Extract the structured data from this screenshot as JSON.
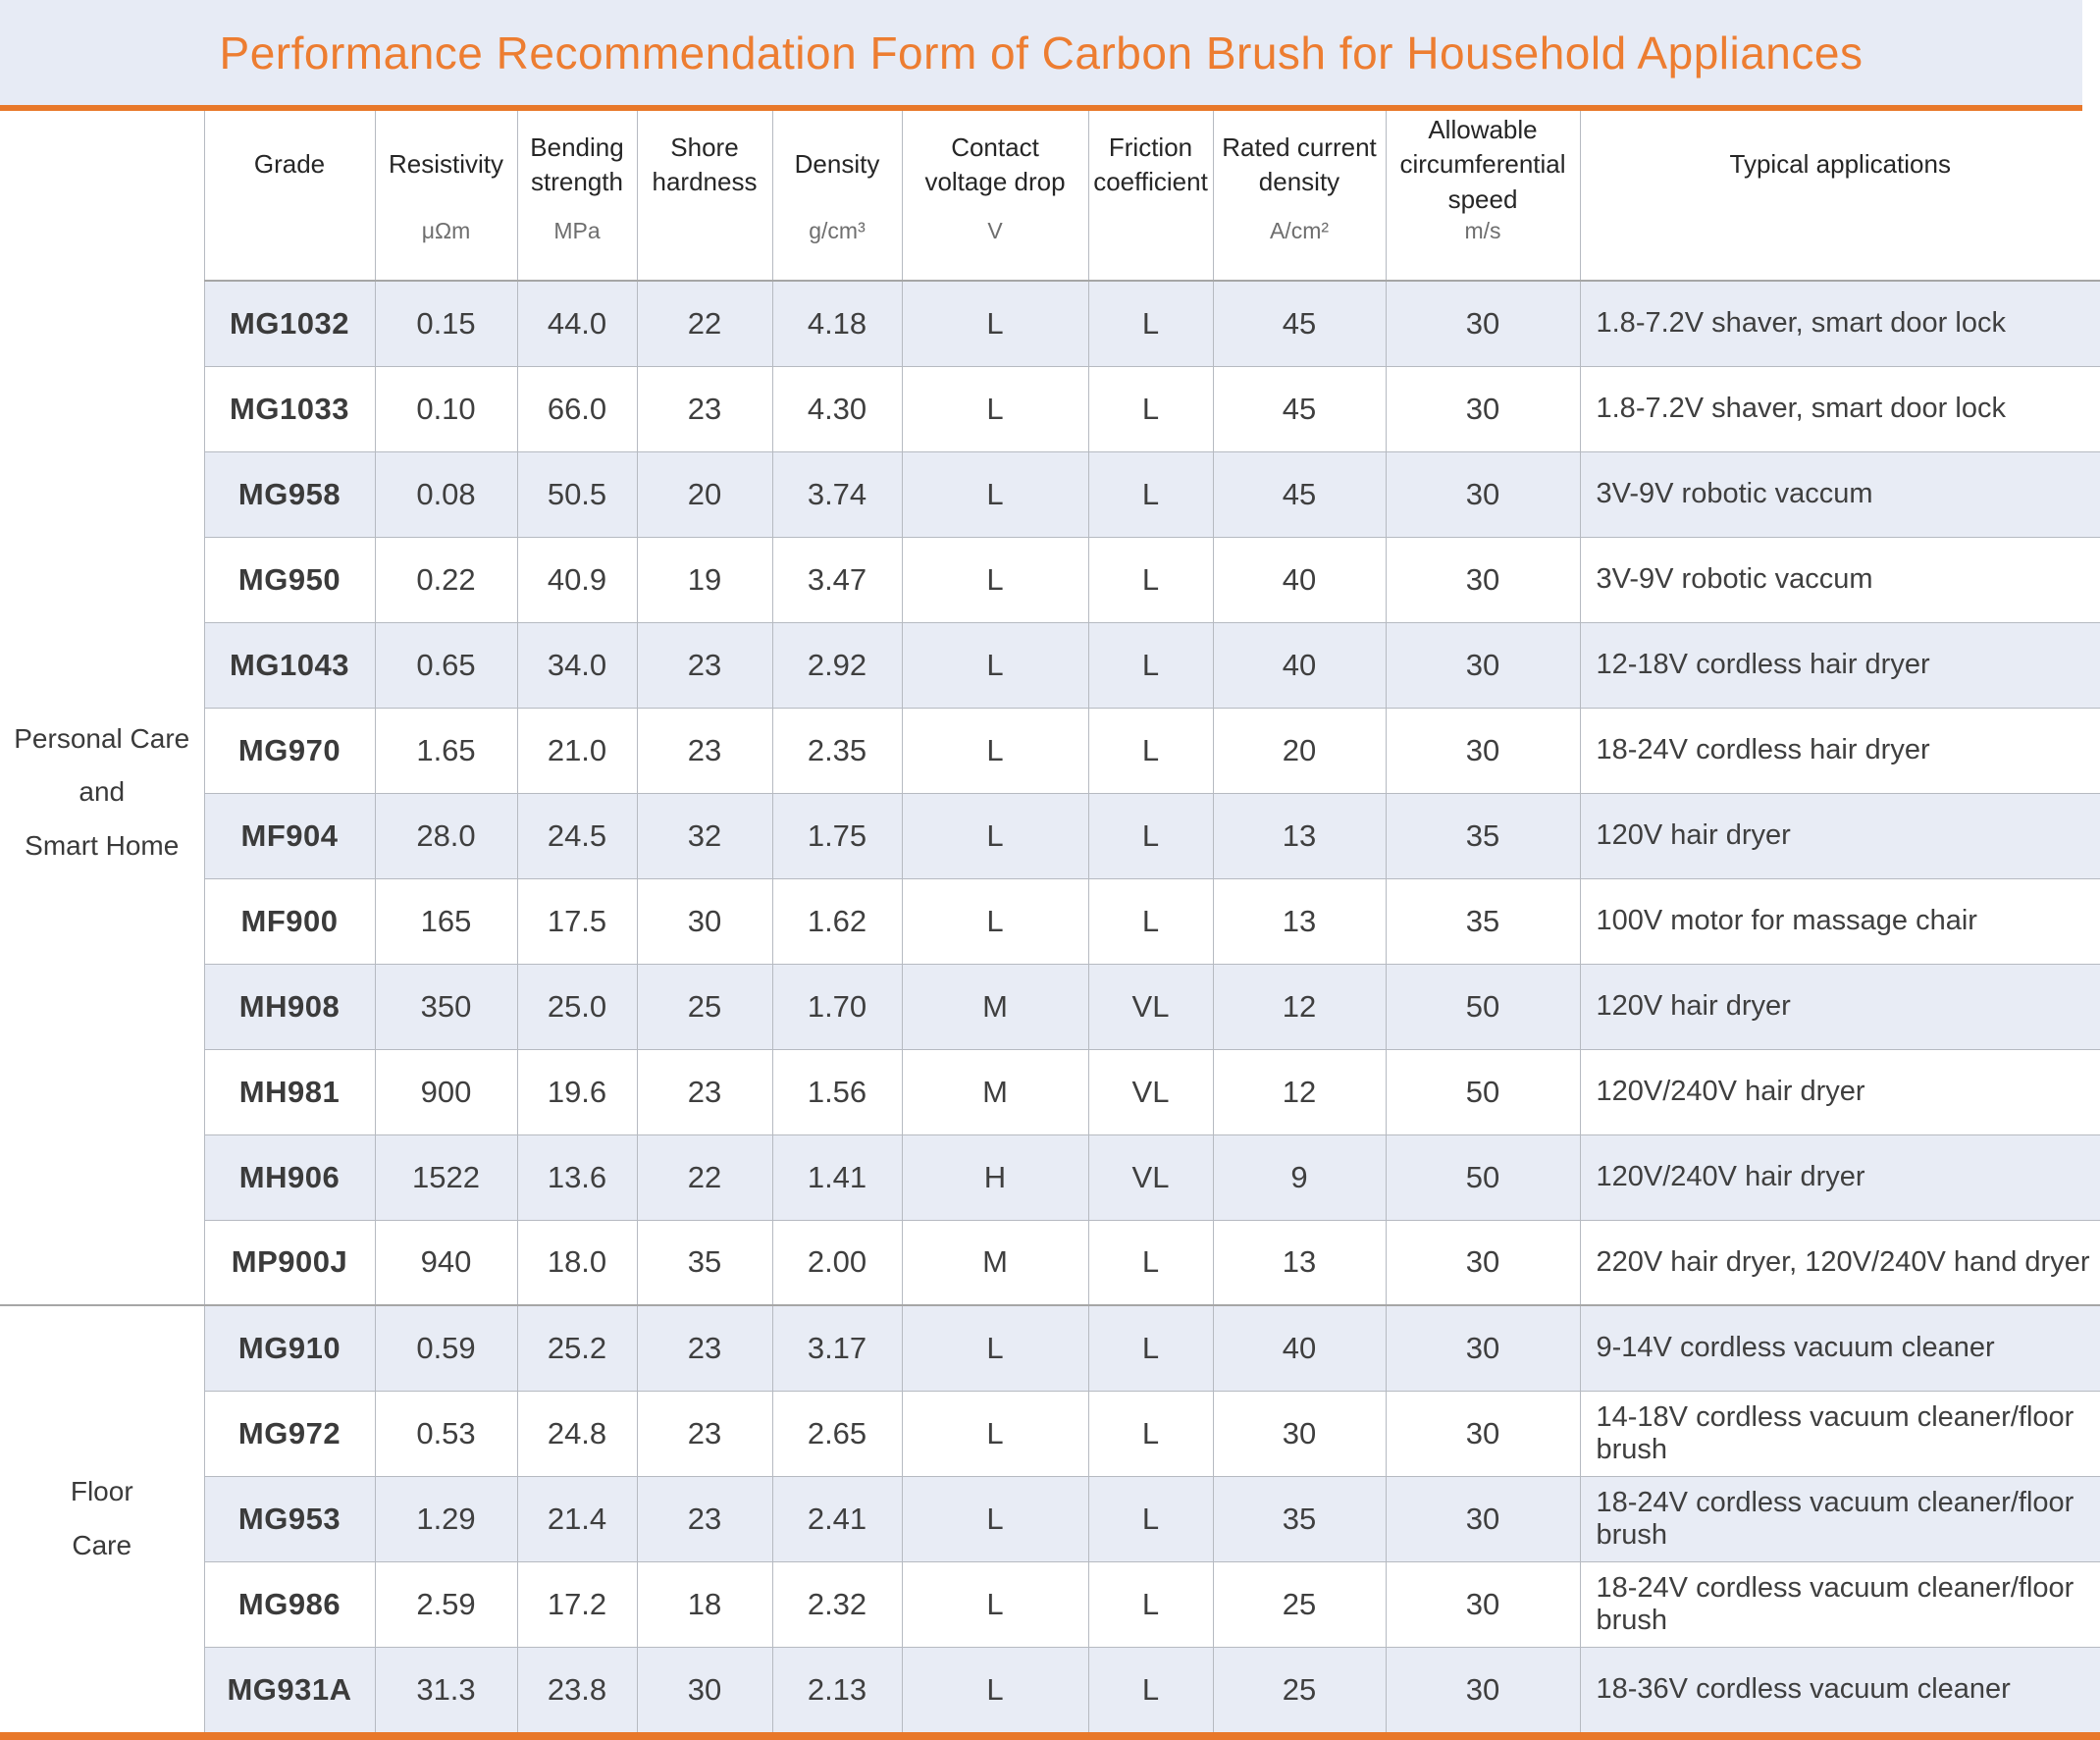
{
  "title": "Performance Recommendation Form of Carbon Brush for Household Appliances",
  "colors": {
    "accent_orange": "#ED7D31",
    "rule_orange": "#E8782A",
    "banner_blue": "#E7EBF5",
    "band_blue": "#E8ECF5",
    "grid_grey": "#B6BAC1",
    "divider_grey": "#A6A6A6",
    "text_dark": "#3F3F3F",
    "unit_grey": "#6E6E6E"
  },
  "table": {
    "columns": [
      {
        "label": "Grade",
        "unit": ""
      },
      {
        "label": "Resistivity",
        "unit": "μΩm"
      },
      {
        "label": "Bending strength",
        "unit": "MPa"
      },
      {
        "label": "Shore hardness",
        "unit": ""
      },
      {
        "label": "Density",
        "unit": "g/cm³"
      },
      {
        "label": "Contact voltage drop",
        "unit": "V"
      },
      {
        "label": "Friction coefficient",
        "unit": ""
      },
      {
        "label": "Rated current density",
        "unit": "A/cm²"
      },
      {
        "label": "Allowable circumferential speed",
        "unit": "m/s"
      },
      {
        "label": "Typical applications",
        "unit": ""
      }
    ],
    "sections": [
      {
        "category": [
          "Personal Care",
          "and",
          "Smart Home"
        ],
        "rows": [
          [
            "MG1032",
            "0.15",
            "44.0",
            "22",
            "4.18",
            "L",
            "L",
            "45",
            "30",
            "1.8-7.2V shaver, smart door lock"
          ],
          [
            "MG1033",
            "0.10",
            "66.0",
            "23",
            "4.30",
            "L",
            "L",
            "45",
            "30",
            "1.8-7.2V shaver, smart door lock"
          ],
          [
            "MG958",
            "0.08",
            "50.5",
            "20",
            "3.74",
            "L",
            "L",
            "45",
            "30",
            "3V-9V robotic vaccum"
          ],
          [
            "MG950",
            "0.22",
            "40.9",
            "19",
            "3.47",
            "L",
            "L",
            "40",
            "30",
            "3V-9V robotic vaccum"
          ],
          [
            "MG1043",
            "0.65",
            "34.0",
            "23",
            "2.92",
            "L",
            "L",
            "40",
            "30",
            "12-18V cordless hair dryer"
          ],
          [
            "MG970",
            "1.65",
            "21.0",
            "23",
            "2.35",
            "L",
            "L",
            "20",
            "30",
            "18-24V cordless hair dryer"
          ],
          [
            "MF904",
            "28.0",
            "24.5",
            "32",
            "1.75",
            "L",
            "L",
            "13",
            "35",
            "120V hair dryer"
          ],
          [
            "MF900",
            "165",
            "17.5",
            "30",
            "1.62",
            "L",
            "L",
            "13",
            "35",
            "100V motor for massage chair"
          ],
          [
            "MH908",
            "350",
            "25.0",
            "25",
            "1.70",
            "M",
            "VL",
            "12",
            "50",
            "120V hair dryer"
          ],
          [
            "MH981",
            "900",
            "19.6",
            "23",
            "1.56",
            "M",
            "VL",
            "12",
            "50",
            "120V/240V hair dryer"
          ],
          [
            "MH906",
            "1522",
            "13.6",
            "22",
            "1.41",
            "H",
            "VL",
            "9",
            "50",
            "120V/240V hair dryer"
          ],
          [
            "MP900J",
            "940",
            "18.0",
            "35",
            "2.00",
            "M",
            "L",
            "13",
            "30",
            "220V hair dryer, 120V/240V hand dryer"
          ]
        ]
      },
      {
        "category": [
          "Floor",
          "Care"
        ],
        "rows": [
          [
            "MG910",
            "0.59",
            "25.2",
            "23",
            "3.17",
            "L",
            "L",
            "40",
            "30",
            "9-14V cordless vacuum cleaner"
          ],
          [
            "MG972",
            "0.53",
            "24.8",
            "23",
            "2.65",
            "L",
            "L",
            "30",
            "30",
            "14-18V cordless vacuum cleaner/floor brush"
          ],
          [
            "MG953",
            "1.29",
            "21.4",
            "23",
            "2.41",
            "L",
            "L",
            "35",
            "30",
            "18-24V cordless vacuum cleaner/floor brush"
          ],
          [
            "MG986",
            "2.59",
            "17.2",
            "18",
            "2.32",
            "L",
            "L",
            "25",
            "30",
            "18-24V cordless vacuum cleaner/floor brush"
          ],
          [
            "MG931A",
            "31.3",
            "23.8",
            "30",
            "2.13",
            "L",
            "L",
            "25",
            "30",
            "18-36V cordless vacuum cleaner"
          ]
        ]
      }
    ]
  }
}
